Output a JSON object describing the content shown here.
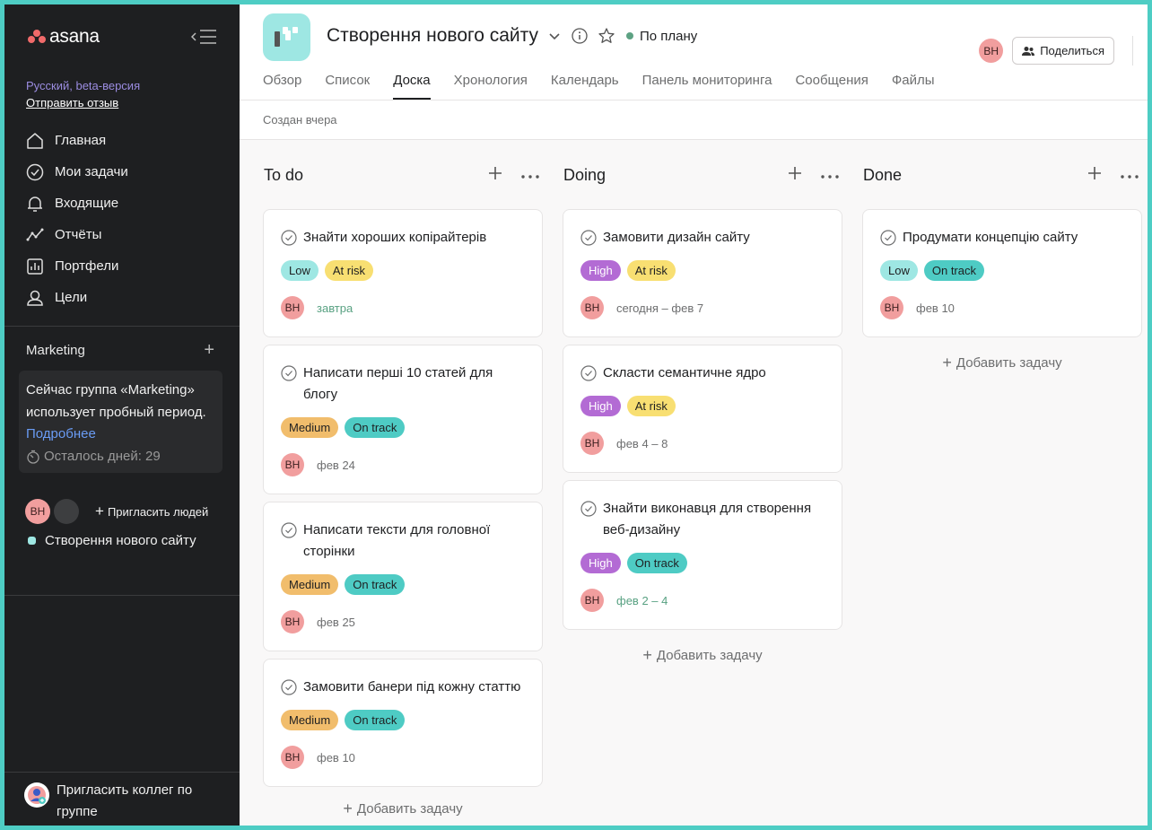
{
  "sidebar": {
    "logo_text": "asana",
    "lang_label": "Русский, beta-версия",
    "feedback_link": "Отправить отзыв",
    "nav": [
      {
        "label": "Главная",
        "icon": "home-icon"
      },
      {
        "label": "Мои задачи",
        "icon": "check-circle-icon"
      },
      {
        "label": "Входящие",
        "icon": "bell-icon"
      },
      {
        "label": "Отчёты",
        "icon": "chart-line-icon"
      },
      {
        "label": "Портфели",
        "icon": "portfolio-icon"
      },
      {
        "label": "Цели",
        "icon": "person-icon"
      }
    ],
    "team_name": "Marketing",
    "trial_text": "Сейчас группа «Marketing» использует пробный период.",
    "trial_more": "Подробнее",
    "trial_days": "Осталось дней: 29",
    "member_initials": "ВН",
    "invite_people": "Пригласить людей",
    "project_name": "Створення нового сайту",
    "invite_colleagues": "Пригласить коллег по группе"
  },
  "header": {
    "project_title": "Створення нового сайту",
    "status": "По плану",
    "status_color": "#5da283",
    "avatar_initials": "ВН",
    "share_label": "Поделиться",
    "tabs": [
      "Обзор",
      "Список",
      "Доска",
      "Хронология",
      "Календарь",
      "Панель мониторинга",
      "Сообщения",
      "Файлы"
    ],
    "active_tab": "Доска",
    "created": "Создан вчера"
  },
  "board": {
    "add_task_label": "Добавить задачу",
    "columns": [
      {
        "title": "To do",
        "cards": [
          {
            "title": "Знайти хороших копірайтерів",
            "priority": "Low",
            "status": "At risk",
            "assignee": "ВН",
            "due": "завтра"
          },
          {
            "title": "Написати перші 10 статей для блогу",
            "priority": "Medium",
            "status": "On track",
            "assignee": "ВН",
            "due": "фев 24"
          },
          {
            "title": "Написати тексти для головної сторінки",
            "priority": "Medium",
            "status": "On track",
            "assignee": "ВН",
            "due": "фев 25"
          },
          {
            "title": "Замовити банери під кожну статтю",
            "priority": "Medium",
            "status": "On track",
            "assignee": "ВН",
            "due": "фев 10"
          }
        ]
      },
      {
        "title": "Doing",
        "cards": [
          {
            "title": "Замовити дизайн сайту",
            "priority": "High",
            "status": "At risk",
            "assignee": "ВН",
            "due": "сегодня – фев 7"
          },
          {
            "title": "Скласти семантичне ядро",
            "priority": "High",
            "status": "At risk",
            "assignee": "ВН",
            "due": "фев 4 – 8"
          },
          {
            "title": "Знайти виконавця для створення веб-дизайну",
            "priority": "High",
            "status": "On track",
            "assignee": "ВН",
            "due": "фев 2 – 4"
          }
        ]
      },
      {
        "title": "Done",
        "cards": [
          {
            "title": "Продумати концепцію сайту",
            "priority": "Low",
            "status": "On track",
            "assignee": "ВН",
            "due": "фев 10"
          }
        ]
      }
    ]
  },
  "colors": {
    "low": "#9ee7e3",
    "medium": "#f1bd6c",
    "high": "#b36bd4",
    "at_risk": "#f8df72",
    "on_track": "#4ecbc4",
    "sidebar_bg": "#1e1f21"
  }
}
